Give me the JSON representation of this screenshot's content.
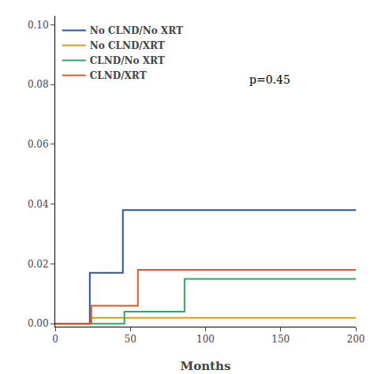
{
  "chart_data": {
    "type": "line",
    "title": "",
    "xlabel": "Months",
    "ylabel": "",
    "series": [
      {
        "name": "No CLND/No XRT",
        "color": "#2453a8",
        "x": [
          0,
          23,
          23,
          45,
          45,
          130,
          200
        ],
        "values": [
          0.0,
          0.0,
          0.017,
          0.017,
          0.038,
          0.038,
          0.038
        ]
      },
      {
        "name": "No CLND/XRT",
        "color": "#d4a017",
        "x": [
          0,
          24,
          24,
          120,
          200
        ],
        "values": [
          0.0,
          0.0,
          0.002,
          0.002,
          0.002
        ]
      },
      {
        "name": "CLND/No XRT",
        "color": "#2aaa60",
        "x": [
          0,
          46,
          46,
          86,
          86,
          160,
          200
        ],
        "values": [
          0.0,
          0.0,
          0.004,
          0.004,
          0.015,
          0.015,
          0.015
        ]
      },
      {
        "name": "CLND/XRT",
        "color": "#d95a25",
        "x": [
          0,
          24,
          24,
          55,
          55,
          200
        ],
        "values": [
          0.0,
          0.0,
          0.006,
          0.006,
          0.018,
          0.018
        ]
      }
    ],
    "xlim": [
      0,
      200
    ],
    "xticks": [
      0,
      50,
      100,
      150,
      200
    ],
    "ylim": [
      -0.001,
      0.103
    ],
    "yticks": [
      {
        "value": 0,
        "label": "0.00"
      },
      0.02,
      0.04,
      0.06,
      0.08,
      {
        "value": 0.1,
        "label": "0.10"
      }
    ],
    "annotations": [
      {
        "text": "p=0.45",
        "x": 128,
        "y": 0.079
      }
    ],
    "legend": "upper left",
    "grid": false
  }
}
